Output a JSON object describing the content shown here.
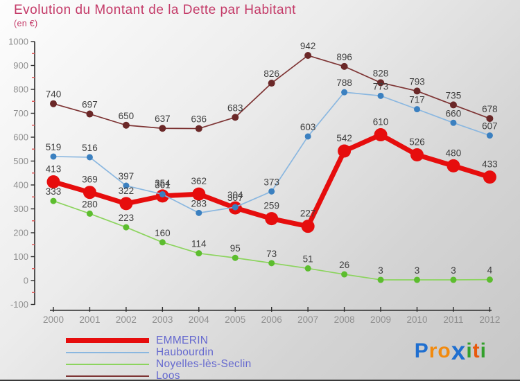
{
  "header": {
    "title": "Evolution du Montant de la Dette par Habitant",
    "subtitle": "(en €)"
  },
  "chart_data": {
    "type": "line",
    "title": "Evolution du Montant de la Dette par Habitant",
    "subtitle": "(en €)",
    "xlabel": "",
    "ylabel": "en €",
    "x": [
      2000,
      2001,
      2002,
      2003,
      2004,
      2005,
      2006,
      2007,
      2008,
      2009,
      2010,
      2011,
      2012
    ],
    "series": [
      {
        "name": "EMMERIN",
        "line_color": "#e60d0d",
        "marker_color": "#e60d0d",
        "line_width": 7,
        "marker_radius": 9.5,
        "values": [
          413,
          369,
          322,
          354,
          362,
          304,
          259,
          227,
          542,
          610,
          526,
          480,
          433
        ]
      },
      {
        "name": "Haubourdin",
        "line_color": "#8ab7e0",
        "marker_color": "#3b80c0",
        "line_width": 1.7,
        "marker_radius": 4.5,
        "values": [
          519,
          516,
          397,
          361,
          283,
          307,
          373,
          603,
          788,
          773,
          717,
          660,
          607
        ]
      },
      {
        "name": "Noyelles-lès-Seclin",
        "line_color": "#8cd45e",
        "marker_color": "#5cbd2e",
        "line_width": 1.7,
        "marker_radius": 4.5,
        "values": [
          333,
          280,
          223,
          160,
          114,
          95,
          73,
          51,
          26,
          3,
          3,
          3,
          4
        ]
      },
      {
        "name": "Loos",
        "line_color": "#7e3434",
        "marker_color": "#6b2828",
        "line_width": 1.7,
        "marker_radius": 5,
        "values": [
          740,
          697,
          650,
          637,
          636,
          683,
          826,
          942,
          896,
          828,
          793,
          735,
          678
        ]
      }
    ],
    "ylim": [
      -100,
      1000
    ],
    "ytick_step": 100,
    "y_minor_tick_step": 50,
    "grid": false,
    "legend_position": "bottom-left",
    "axis_color": "#2b2b2b",
    "minor_tick_color": "#e05a5a",
    "tick_label_color": "#8f8f8f",
    "data_label_color": "#3e3e3e"
  },
  "legend": {
    "items": [
      {
        "label": "EMMERIN",
        "color": "#e60d0d",
        "thick": true
      },
      {
        "label": "Haubourdin",
        "color": "#8ab7e0",
        "thick": false
      },
      {
        "label": "Noyelles-lès-Seclin",
        "color": "#8cd45e",
        "thick": false
      },
      {
        "label": "Loos",
        "color": "#7e3434",
        "thick": false
      }
    ]
  },
  "logo": {
    "name": "Proxiti",
    "letters": [
      {
        "ch": "P",
        "color": "#1f6fd0"
      },
      {
        "ch": "r",
        "color": "#f28a0e"
      },
      {
        "ch": "o",
        "color": "#f28a0e"
      },
      {
        "ch": "x",
        "color": "#1f6fd0"
      },
      {
        "ch": "i",
        "color": "#33a02c"
      },
      {
        "ch": "t",
        "color": "#e8590c"
      },
      {
        "ch": "i",
        "color": "#33a02c"
      }
    ]
  }
}
